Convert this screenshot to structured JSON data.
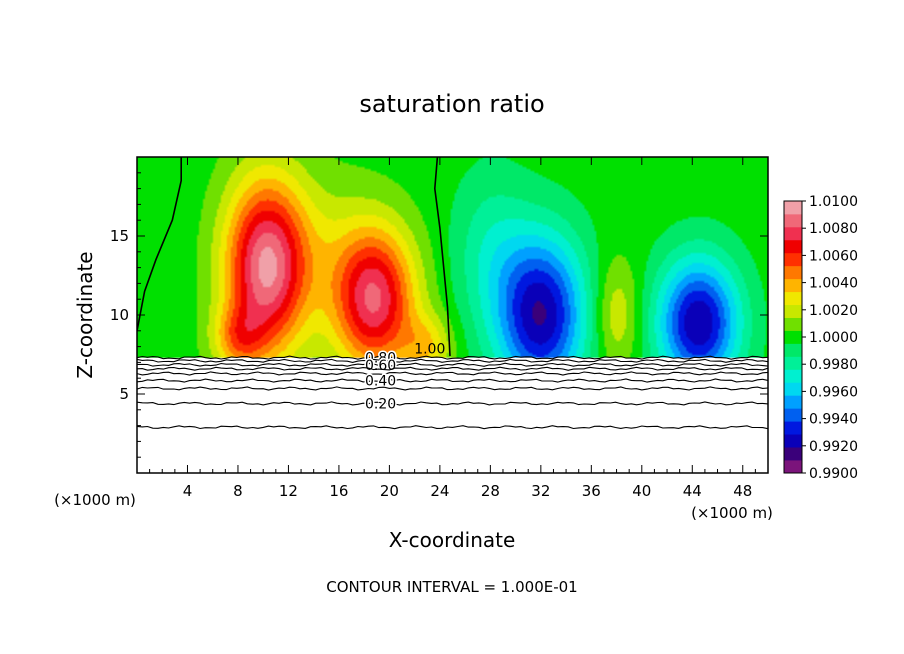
{
  "chart_data": {
    "type": "heatmap",
    "title": "saturation ratio",
    "xlabel": "X-coordinate",
    "ylabel": "Z-coordinate",
    "x_unit_left": "(×1000 m)",
    "x_unit_right": "(×1000 m)",
    "xlim": [
      0,
      50
    ],
    "ylim": [
      0,
      20
    ],
    "xticks": [
      4,
      8,
      12,
      16,
      20,
      24,
      28,
      32,
      36,
      40,
      44,
      48
    ],
    "yticks": [
      5,
      10,
      15
    ],
    "colorbar": {
      "min": 0.99,
      "max": 1.01,
      "levels": [
        {
          "value": 0.99,
          "color": "#7b147b"
        },
        {
          "value": 0.991,
          "color": "#3a007a"
        },
        {
          "value": 0.992,
          "color": "#0a00b8"
        },
        {
          "value": 0.993,
          "color": "#0018e0"
        },
        {
          "value": 0.994,
          "color": "#0060f0"
        },
        {
          "value": 0.995,
          "color": "#00a0ff"
        },
        {
          "value": 0.996,
          "color": "#00d8f0"
        },
        {
          "value": 0.997,
          "color": "#00f0d0"
        },
        {
          "value": 0.998,
          "color": "#00f098"
        },
        {
          "value": 0.999,
          "color": "#00e868"
        },
        {
          "value": 1.0,
          "color": "#00e000"
        },
        {
          "value": 1.001,
          "color": "#70e000"
        },
        {
          "value": 1.002,
          "color": "#c8e800"
        },
        {
          "value": 1.003,
          "color": "#f0e800"
        },
        {
          "value": 1.004,
          "color": "#ffb400"
        },
        {
          "value": 1.005,
          "color": "#ff7800"
        },
        {
          "value": 1.006,
          "color": "#ff3000"
        },
        {
          "value": 1.007,
          "color": "#f00000"
        },
        {
          "value": 1.008,
          "color": "#f03050"
        },
        {
          "value": 1.009,
          "color": "#f06878"
        },
        {
          "value": 1.01,
          "color": "#f0a0a8"
        }
      ],
      "tick_labels": [
        "0.9900",
        "0.9920",
        "0.9940",
        "0.9960",
        "0.9980",
        "1.0000",
        "1.0020",
        "1.0040",
        "1.0060",
        "1.0080",
        "1.0100"
      ]
    },
    "field_blobs": [
      {
        "x": 10.2,
        "z": 13.0,
        "sx": 3.2,
        "sz": 5.5,
        "amp": 0.0095
      },
      {
        "x": 18.8,
        "z": 11.0,
        "sx": 3.2,
        "sz": 4.5,
        "amp": 0.0085
      },
      {
        "x": 8.0,
        "z": 8.5,
        "sx": 2.0,
        "sz": 2.0,
        "amp": 0.0035
      },
      {
        "x": 23.0,
        "z": 8.0,
        "sx": 2.0,
        "sz": 2.0,
        "amp": 0.003
      },
      {
        "x": 14.5,
        "z": 14.0,
        "sx": 4.0,
        "sz": 5.0,
        "amp": 0.0015
      },
      {
        "x": 32.0,
        "z": 10.0,
        "sx": 3.5,
        "sz": 5.0,
        "amp": -0.0085
      },
      {
        "x": 44.5,
        "z": 9.5,
        "sx": 3.2,
        "sz": 4.0,
        "amp": -0.0085
      },
      {
        "x": 38.0,
        "z": 10.0,
        "sx": 1.8,
        "sz": 3.5,
        "amp": 0.0025
      },
      {
        "x": 28.0,
        "z": 14.0,
        "sx": 3.0,
        "sz": 5.0,
        "amp": -0.002
      }
    ],
    "ground_level_z": 7.3,
    "contour_label_1": "1.00",
    "contour_lines": [
      {
        "z": 7.3,
        "label": "0.80"
      },
      {
        "z": 7.1,
        "label": ""
      },
      {
        "z": 6.85,
        "label": "0.60"
      },
      {
        "z": 6.6,
        "label": ""
      },
      {
        "z": 6.3,
        "label": ""
      },
      {
        "z": 5.85,
        "label": "0.40"
      },
      {
        "z": 5.35,
        "label": ""
      },
      {
        "z": 4.4,
        "label": "0.20"
      },
      {
        "z": 2.9,
        "label": ""
      }
    ],
    "note": "CONTOUR INTERVAL = 1.000E-01"
  }
}
